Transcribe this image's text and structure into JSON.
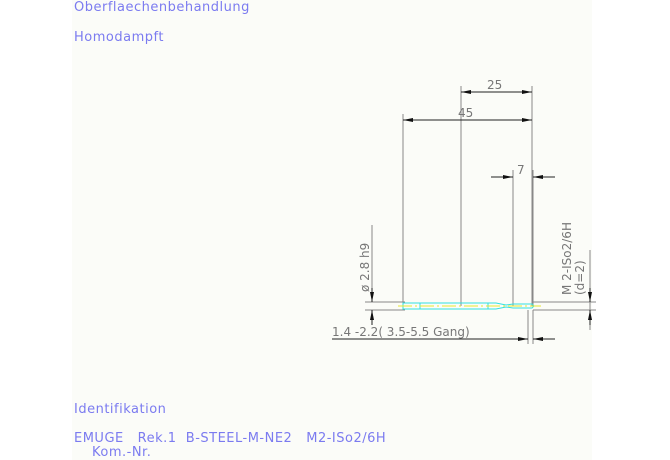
{
  "header": {
    "surface_label": "Oberflaechenbehandlung",
    "surface_value": "Homodampft"
  },
  "footer": {
    "ident_label": "Identifikation",
    "ident_value": "EMUGE   Rek.1  B-STEEL-M-NE2   M2-ISo2/6H",
    "kom_label": "Kom.-Nr."
  },
  "drawing": {
    "dim_25": "25",
    "dim_45": "45",
    "dim_7": "7",
    "dim_diameter": "ø 2.8  h9",
    "dim_thread": "M 2-ISo2/6H",
    "dim_thread_d": "(d=2)",
    "dim_chamfer": "1.4 -2.2( 3.5-5.5  Gang)"
  },
  "colors": {
    "text": "#7b7bf0",
    "dimension": "#777777",
    "tool_outline": "#33e0e0",
    "centerline": "#e8e830",
    "background": "#fbfcf8"
  }
}
